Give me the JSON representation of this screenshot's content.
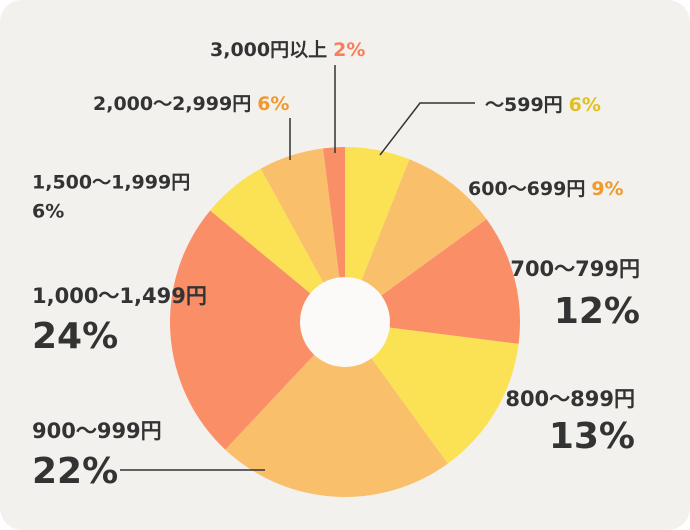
{
  "chart_data": {
    "type": "donut",
    "categories": [
      "～599円",
      "600～699円",
      "700～799円",
      "800～899円",
      "900～999円",
      "1,000～1,499円",
      "1,500～1,999円",
      "2,000～2,999円",
      "3,000円以上"
    ],
    "series": [
      {
        "values": [
          6,
          9,
          12,
          13,
          22,
          24,
          6,
          6,
          2
        ],
        "value_labels": [
          "6%",
          "9%",
          "12%",
          "13%",
          "22%",
          "24%",
          "6%",
          "6%",
          "2%"
        ],
        "colors": [
          "#fbe254",
          "#f9bf6a",
          "#f98e67",
          "#fbe254",
          "#f9bf6a",
          "#f98e67",
          "#fbe254",
          "#f9bf6a",
          "#f98e67"
        ],
        "label_colors": [
          "#e3bf1f",
          "#f09a2c",
          "#f77f5a",
          "#e3bf1f",
          "#f09a2c",
          "#f77f5a",
          "#e3bf1f",
          "#f09a2c",
          "#f77f5a"
        ]
      }
    ],
    "start_angle": 0,
    "direction": "clockwise"
  }
}
